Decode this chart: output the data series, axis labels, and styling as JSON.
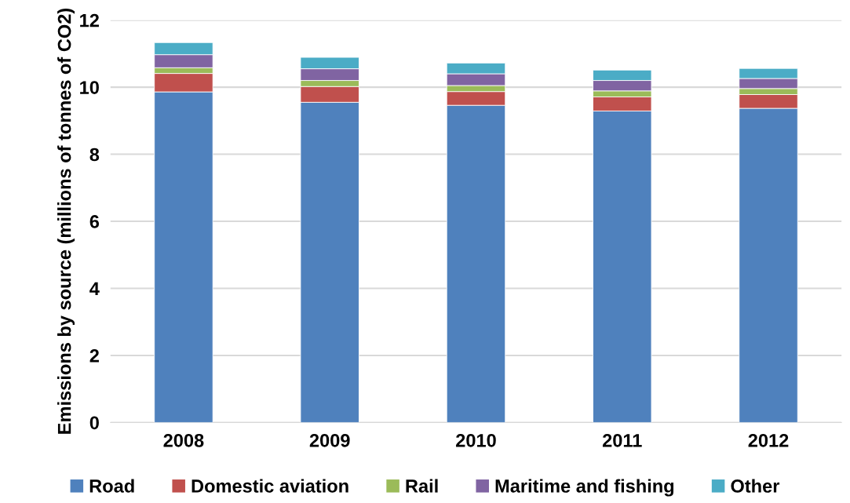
{
  "chart_data": {
    "type": "bar",
    "stacked": true,
    "ylabel": "Emissions by source (millions of tonnes of CO2)",
    "categories": [
      "2008",
      "2009",
      "2010",
      "2011",
      "2012"
    ],
    "series": [
      {
        "name": "Road",
        "color": "#4f81bd",
        "values": [
          9.86,
          9.55,
          9.46,
          9.29,
          9.37
        ]
      },
      {
        "name": "Domestic aviation",
        "color": "#c0504d",
        "values": [
          0.55,
          0.47,
          0.41,
          0.42,
          0.41
        ]
      },
      {
        "name": "Rail",
        "color": "#9bbb59",
        "values": [
          0.17,
          0.18,
          0.18,
          0.18,
          0.18
        ]
      },
      {
        "name": "Maritime and fishing",
        "color": "#8064a2",
        "values": [
          0.39,
          0.35,
          0.35,
          0.31,
          0.3
        ]
      },
      {
        "name": "Other",
        "color": "#4bacc6",
        "values": [
          0.36,
          0.34,
          0.32,
          0.31,
          0.3
        ]
      }
    ],
    "ylim": [
      0,
      12
    ],
    "yticks": [
      0,
      2,
      4,
      6,
      8,
      10,
      12
    ],
    "grid": "y",
    "legend": "bottom"
  }
}
